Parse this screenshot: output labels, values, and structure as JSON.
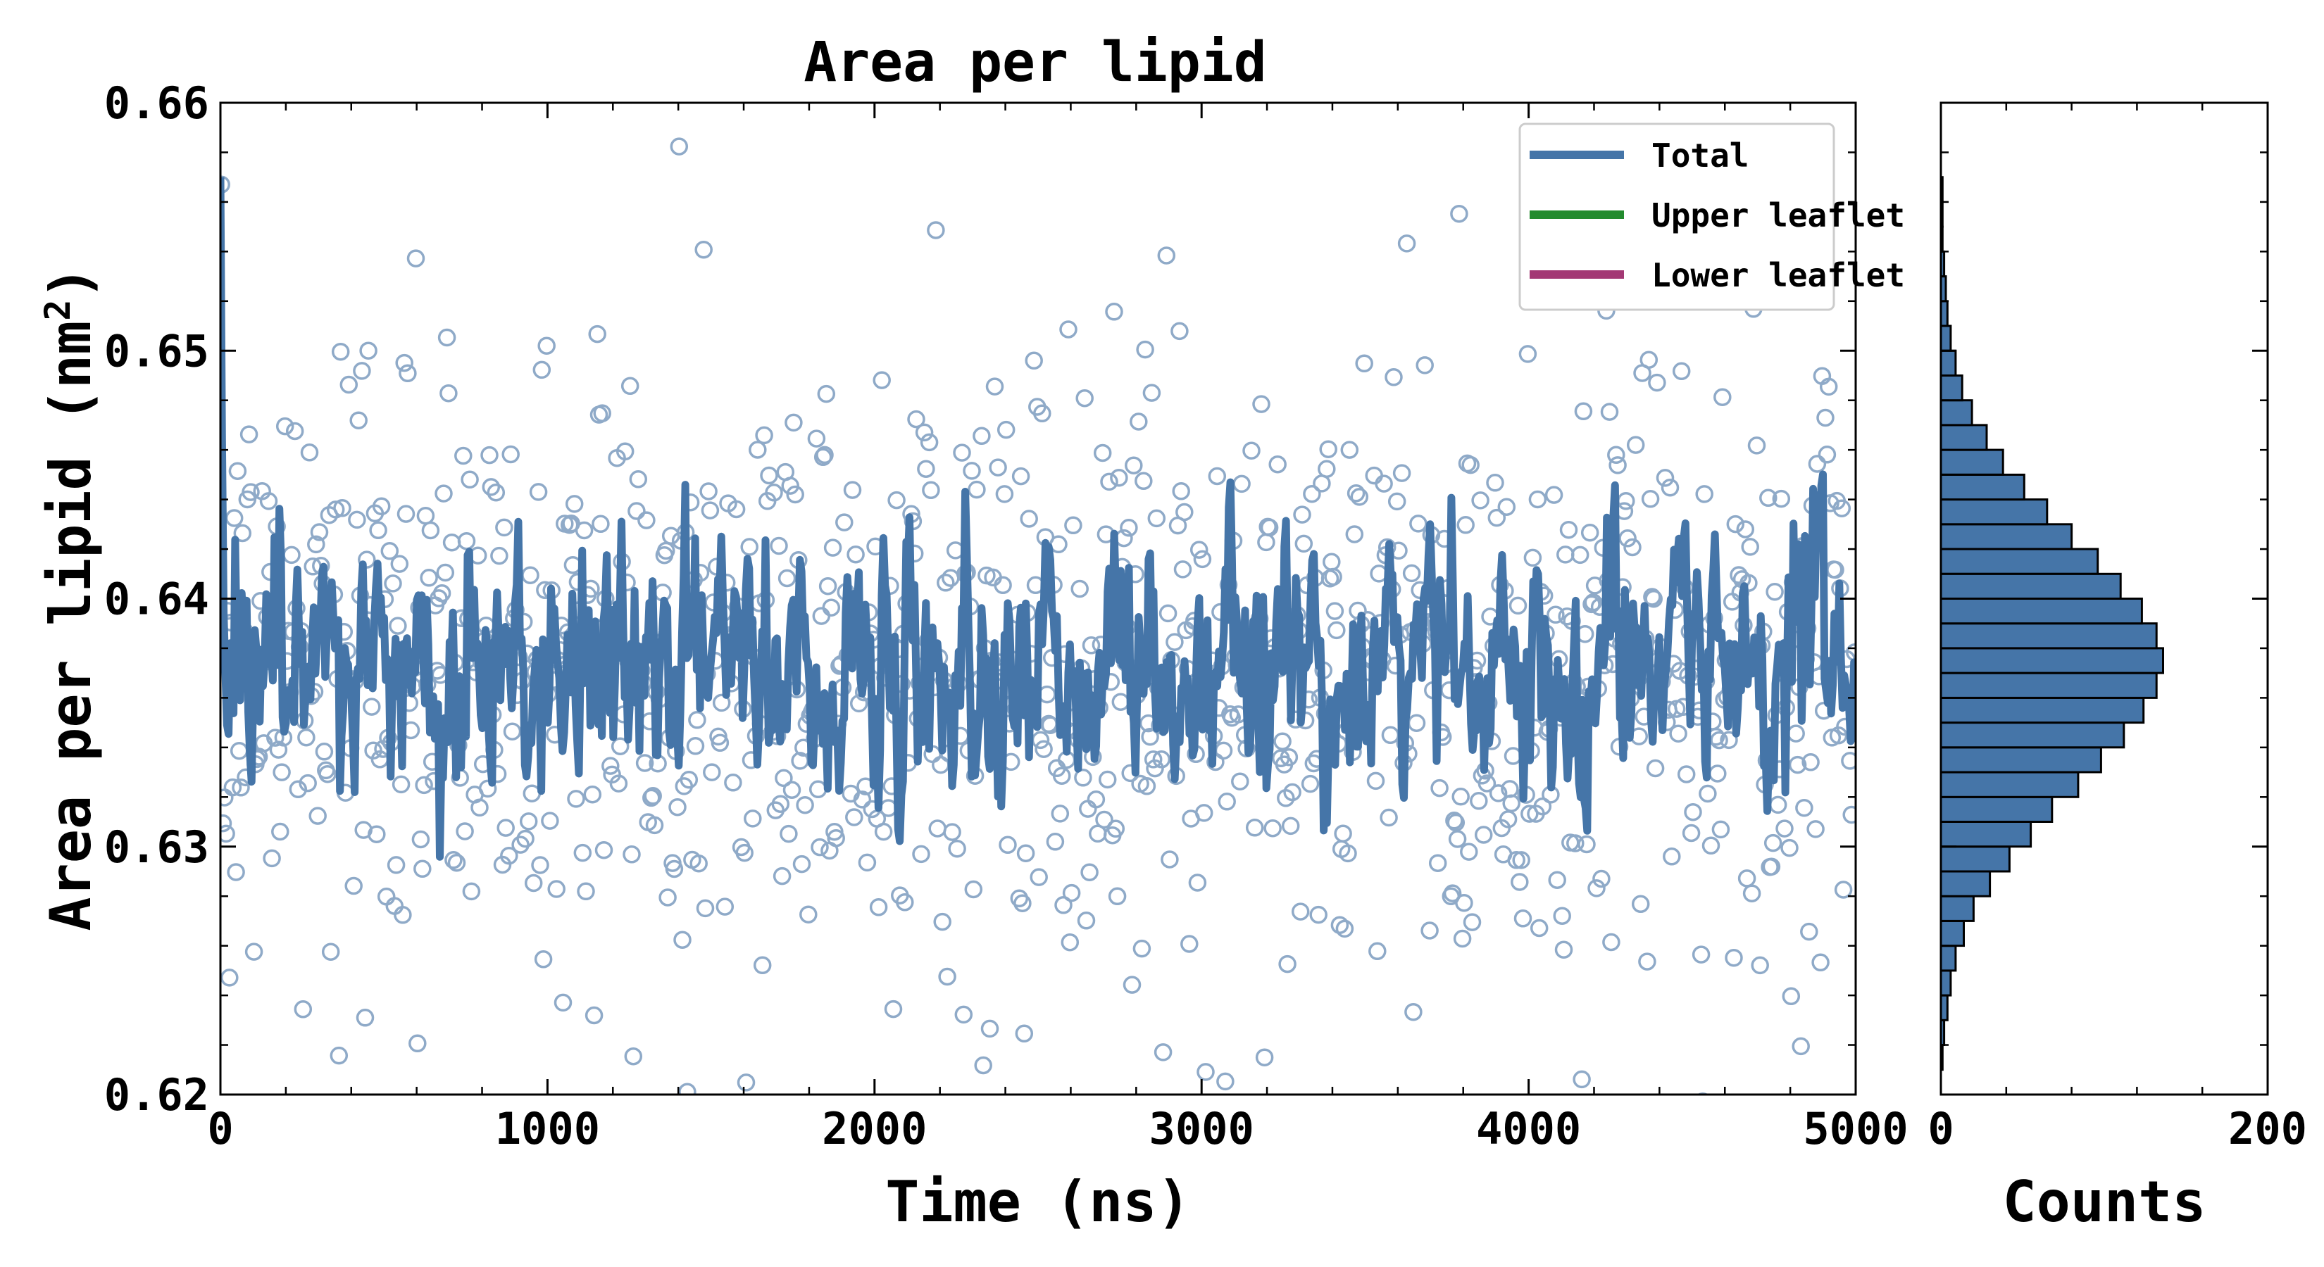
{
  "chart_data": [
    {
      "type": "scatter+line",
      "title": "Area per lipid",
      "xlabel": "Time (ns)",
      "ylabel": "Area per lipid (nm",
      "ylabel_sup": "2",
      "ylabel_close": ")",
      "xlim": [
        0,
        5000
      ],
      "ylim": [
        0.62,
        0.66
      ],
      "x_ticks": [
        0,
        1000,
        2000,
        3000,
        4000,
        5000
      ],
      "x_tick_labels": [
        "0",
        "1000",
        "2000",
        "3000",
        "4000",
        "5000"
      ],
      "y_ticks": [
        0.62,
        0.63,
        0.64,
        0.65,
        0.66
      ],
      "y_tick_labels": [
        "0.62",
        "0.63",
        "0.64",
        "0.65",
        "0.66"
      ],
      "legend_position": "top-right",
      "series": [
        {
          "name": "Total",
          "color": "#4575a8",
          "style": "line"
        },
        {
          "name": "Upper leaflet",
          "color": "#238b2e",
          "style": "line"
        },
        {
          "name": "Lower leaflet",
          "color": "#a33874",
          "style": "line"
        }
      ],
      "raw_points": {
        "description_note": "open circles, sampled every ~5 ns, mean ~0.637, sd ~0.0065",
        "count": 1000,
        "mean": 0.6373,
        "sd": 0.0065,
        "marker_color": "#8faac8"
      },
      "smoothed_total": {
        "count": 1000,
        "mean": 0.6373,
        "sd": 0.0025,
        "initial_value": 0.657
      }
    },
    {
      "type": "histogram-horizontal",
      "xlabel": "Counts",
      "xlim": [
        0,
        200
      ],
      "x_ticks": [
        0,
        200
      ],
      "x_tick_labels": [
        "0",
        "200"
      ],
      "ylim": [
        0.62,
        0.66
      ],
      "bar_color": "#4575a8",
      "bins": [
        {
          "y0": 0.62,
          "y1": 0.621,
          "count": 0
        },
        {
          "y0": 0.621,
          "y1": 0.622,
          "count": 1
        },
        {
          "y0": 0.622,
          "y1": 0.623,
          "count": 2
        },
        {
          "y0": 0.623,
          "y1": 0.624,
          "count": 4
        },
        {
          "y0": 0.624,
          "y1": 0.625,
          "count": 6
        },
        {
          "y0": 0.625,
          "y1": 0.626,
          "count": 9
        },
        {
          "y0": 0.626,
          "y1": 0.627,
          "count": 14
        },
        {
          "y0": 0.627,
          "y1": 0.628,
          "count": 20
        },
        {
          "y0": 0.628,
          "y1": 0.629,
          "count": 30
        },
        {
          "y0": 0.629,
          "y1": 0.63,
          "count": 42
        },
        {
          "y0": 0.63,
          "y1": 0.631,
          "count": 55
        },
        {
          "y0": 0.631,
          "y1": 0.632,
          "count": 68
        },
        {
          "y0": 0.632,
          "y1": 0.633,
          "count": 84
        },
        {
          "y0": 0.633,
          "y1": 0.634,
          "count": 98
        },
        {
          "y0": 0.634,
          "y1": 0.635,
          "count": 112
        },
        {
          "y0": 0.635,
          "y1": 0.636,
          "count": 124
        },
        {
          "y0": 0.636,
          "y1": 0.637,
          "count": 132
        },
        {
          "y0": 0.637,
          "y1": 0.638,
          "count": 136
        },
        {
          "y0": 0.638,
          "y1": 0.639,
          "count": 132
        },
        {
          "y0": 0.639,
          "y1": 0.64,
          "count": 123
        },
        {
          "y0": 0.64,
          "y1": 0.641,
          "count": 110
        },
        {
          "y0": 0.641,
          "y1": 0.642,
          "count": 96
        },
        {
          "y0": 0.642,
          "y1": 0.643,
          "count": 80
        },
        {
          "y0": 0.643,
          "y1": 0.644,
          "count": 65
        },
        {
          "y0": 0.644,
          "y1": 0.645,
          "count": 51
        },
        {
          "y0": 0.645,
          "y1": 0.646,
          "count": 38
        },
        {
          "y0": 0.646,
          "y1": 0.647,
          "count": 28
        },
        {
          "y0": 0.647,
          "y1": 0.648,
          "count": 19
        },
        {
          "y0": 0.648,
          "y1": 0.649,
          "count": 13
        },
        {
          "y0": 0.649,
          "y1": 0.65,
          "count": 9
        },
        {
          "y0": 0.65,
          "y1": 0.651,
          "count": 6
        },
        {
          "y0": 0.651,
          "y1": 0.652,
          "count": 4
        },
        {
          "y0": 0.652,
          "y1": 0.653,
          "count": 3
        },
        {
          "y0": 0.653,
          "y1": 0.654,
          "count": 2
        },
        {
          "y0": 0.654,
          "y1": 0.655,
          "count": 1
        },
        {
          "y0": 0.655,
          "y1": 0.656,
          "count": 1
        },
        {
          "y0": 0.656,
          "y1": 0.657,
          "count": 1
        }
      ]
    }
  ]
}
